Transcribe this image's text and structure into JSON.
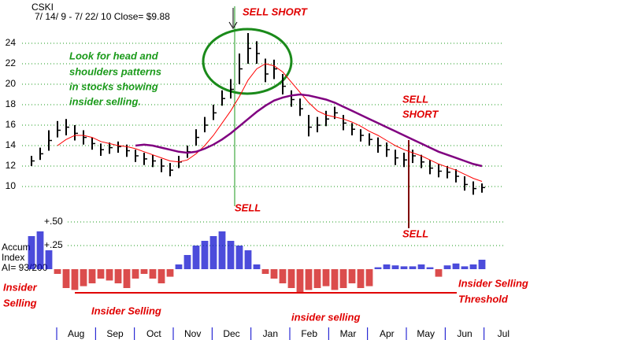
{
  "chart_data": {
    "type": "ohlc",
    "symbol": "CSKI",
    "range_text": "7/ 14/ 9 -  7/ 22/ 10    Close= $9.88",
    "months": [
      "Aug",
      "Sep",
      "Oct",
      "Nov",
      "Dec",
      "Jan",
      "Feb",
      "Mar",
      "Apr",
      "May",
      "Jun",
      "Jul"
    ],
    "ylim": [
      10,
      24
    ],
    "yticks": [
      10,
      12,
      14,
      16,
      18,
      20,
      22,
      24
    ],
    "grid": true,
    "bar_color": "#000000",
    "high": [
      13.0,
      13.8,
      15.5,
      16.4,
      16.6,
      16.0,
      15.5,
      14.8,
      14.2,
      14.3,
      14.4,
      14.1,
      13.6,
      13.3,
      13.1,
      12.7,
      12.3,
      13.0,
      14.0,
      15.6,
      16.8,
      18.0,
      19.4,
      20.5,
      23.0,
      25.0,
      24.2,
      22.5,
      22.4,
      21.0,
      19.4,
      18.6,
      17.0,
      16.8,
      17.4,
      17.8,
      17.0,
      16.2,
      15.6,
      15.2,
      14.8,
      14.3,
      13.6,
      13.3,
      13.6,
      13.1,
      12.6,
      12.2,
      12.0,
      11.7,
      11.0,
      10.5,
      10.3
    ],
    "low": [
      12.0,
      12.6,
      13.5,
      14.8,
      15.0,
      14.5,
      14.1,
      13.6,
      13.0,
      13.2,
      13.3,
      12.9,
      12.4,
      12.1,
      11.9,
      11.4,
      11.0,
      11.8,
      12.8,
      14.0,
      15.3,
      16.5,
      17.9,
      18.6,
      20.0,
      22.0,
      22.0,
      20.2,
      20.5,
      19.0,
      17.8,
      16.9,
      14.9,
      15.3,
      15.9,
      16.6,
      15.5,
      15.0,
      14.4,
      14.0,
      13.3,
      12.9,
      12.1,
      11.9,
      12.3,
      11.8,
      11.2,
      10.9,
      10.8,
      10.4,
      9.6,
      9.2,
      9.4
    ],
    "close": [
      12.5,
      13.2,
      14.5,
      15.5,
      15.8,
      15.2,
      14.8,
      14.2,
      13.6,
      13.8,
      13.9,
      13.5,
      13.0,
      12.7,
      12.5,
      12.0,
      11.6,
      12.4,
      13.4,
      14.8,
      16.0,
      17.2,
      18.6,
      19.5,
      21.5,
      23.5,
      23.0,
      21.0,
      21.5,
      19.8,
      18.5,
      17.6,
      15.8,
      16.0,
      16.6,
      17.2,
      16.2,
      15.6,
      15.0,
      14.6,
      14.0,
      13.6,
      12.8,
      12.6,
      13.0,
      12.4,
      11.8,
      11.5,
      11.4,
      11.0,
      10.2,
      9.8,
      9.9
    ],
    "series": [
      {
        "color": "#ff0000",
        "values": [
          null,
          null,
          null,
          14.0,
          14.6,
          15.0,
          15.0,
          14.8,
          14.4,
          14.2,
          14.0,
          13.9,
          13.7,
          13.4,
          13.1,
          12.8,
          12.5,
          12.4,
          12.6,
          13.2,
          14.0,
          15.0,
          16.2,
          17.4,
          18.8,
          20.4,
          21.5,
          22.0,
          21.8,
          21.2,
          20.2,
          19.2,
          18.2,
          17.4,
          17.0,
          16.8,
          16.6,
          16.3,
          15.9,
          15.4,
          15.0,
          14.5,
          14.0,
          13.6,
          13.3,
          13.0,
          12.6,
          12.2,
          11.9,
          11.6,
          11.2,
          10.8,
          10.5
        ]
      },
      {
        "color": "#800080",
        "values": [
          null,
          null,
          null,
          null,
          null,
          null,
          null,
          null,
          null,
          null,
          null,
          null,
          14.0,
          14.1,
          14.0,
          13.8,
          13.6,
          13.4,
          13.3,
          13.4,
          13.7,
          14.1,
          14.6,
          15.2,
          15.9,
          16.6,
          17.3,
          17.9,
          18.4,
          18.7,
          18.9,
          19.0,
          18.9,
          18.7,
          18.5,
          18.2,
          17.8,
          17.4,
          17.0,
          16.6,
          16.2,
          15.8,
          15.4,
          15.0,
          14.6,
          14.2,
          13.8,
          13.4,
          13.1,
          12.8,
          12.5,
          12.2,
          12.0
        ]
      }
    ],
    "accum_label": [
      "Accum",
      "Index",
      "AI= 93/200"
    ],
    "accum_ticks": [
      {
        "value": 0.5,
        "label": "+.50"
      },
      {
        "value": 0.25,
        "label": "+.25"
      }
    ],
    "accum": [
      0.35,
      0.4,
      0.2,
      -0.05,
      -0.2,
      -0.22,
      -0.18,
      -0.15,
      -0.1,
      -0.12,
      -0.15,
      -0.2,
      -0.1,
      -0.05,
      -0.1,
      -0.15,
      -0.08,
      0.05,
      0.15,
      0.25,
      0.3,
      0.35,
      0.4,
      0.3,
      0.25,
      0.2,
      0.05,
      -0.05,
      -0.1,
      -0.15,
      -0.2,
      -0.25,
      -0.22,
      -0.2,
      -0.18,
      -0.22,
      -0.2,
      -0.15,
      -0.2,
      -0.18,
      0.02,
      0.05,
      0.04,
      0.03,
      0.03,
      0.05,
      0.02,
      -0.08,
      0.04,
      0.06,
      0.03,
      0.05,
      0.1
    ],
    "positive_color": "#0000cc",
    "negative_color": "#cc0000",
    "threshold": -0.25,
    "annotations": {
      "sell_short_1": "SELL SHORT",
      "note": [
        "Look for head and",
        "shoulders patterns",
        "in stocks showing",
        "insider selling."
      ],
      "sell_short_2": [
        "SELL",
        "SHORT"
      ],
      "sell_1": "SELL",
      "sell_2": "SELL",
      "insider_left": [
        "Insider",
        "Selling"
      ],
      "insider_bottom": "Insider Selling",
      "insider_lower": "insider selling",
      "threshold_label": [
        "Insider Selling",
        "Threshold"
      ]
    }
  }
}
